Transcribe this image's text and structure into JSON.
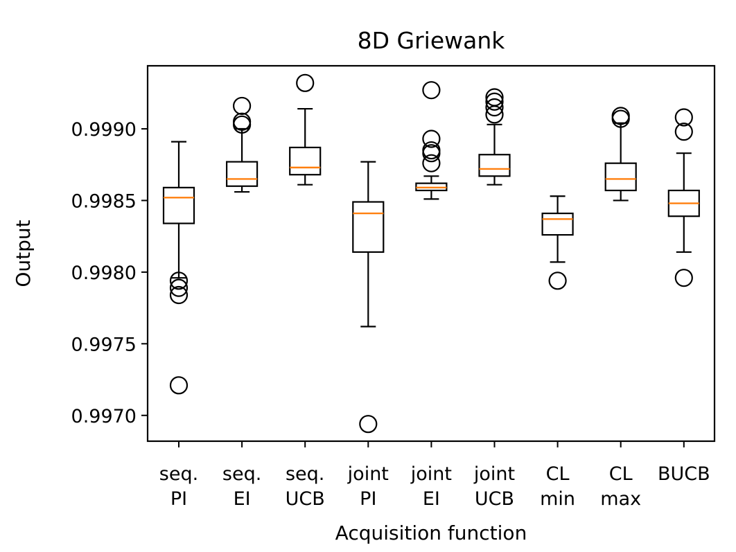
{
  "chart_data": {
    "type": "boxplot",
    "title": "8D Griewank",
    "xlabel": "Acquisition function",
    "ylabel": "Output",
    "ylim": [
      0.99682,
      0.99944
    ],
    "yticks": [
      {
        "value": 0.997,
        "label": "0.9970"
      },
      {
        "value": 0.9975,
        "label": "0.9975"
      },
      {
        "value": 0.998,
        "label": "0.9980"
      },
      {
        "value": 0.9985,
        "label": "0.9985"
      },
      {
        "value": 0.999,
        "label": "0.9990"
      }
    ],
    "categories": [
      {
        "line1": "seq.",
        "line2": "PI"
      },
      {
        "line1": "seq.",
        "line2": "EI"
      },
      {
        "line1": "seq.",
        "line2": "UCB"
      },
      {
        "line1": "joint",
        "line2": "PI"
      },
      {
        "line1": "joint",
        "line2": "EI"
      },
      {
        "line1": "joint",
        "line2": "UCB"
      },
      {
        "line1": "CL",
        "line2": "min"
      },
      {
        "line1": "CL",
        "line2": "max"
      },
      {
        "line1": "BUCB",
        "line2": ""
      }
    ],
    "boxes": [
      {
        "whislo": 0.99796,
        "q1": 0.99834,
        "med": 0.99852,
        "q3": 0.99859,
        "whishi": 0.99891,
        "fliers": [
          0.99794,
          0.99789,
          0.99784,
          0.99721
        ]
      },
      {
        "whislo": 0.99856,
        "q1": 0.9986,
        "med": 0.99865,
        "q3": 0.99877,
        "whishi": 0.999,
        "fliers": [
          0.99903,
          0.99905,
          0.99916
        ]
      },
      {
        "whislo": 0.99861,
        "q1": 0.99868,
        "med": 0.99873,
        "q3": 0.99887,
        "whishi": 0.99914,
        "fliers": [
          0.99932
        ]
      },
      {
        "whislo": 0.99762,
        "q1": 0.99814,
        "med": 0.99841,
        "q3": 0.99849,
        "whishi": 0.99877,
        "fliers": [
          0.99694
        ]
      },
      {
        "whislo": 0.99851,
        "q1": 0.99857,
        "med": 0.99859,
        "q3": 0.99862,
        "whishi": 0.99867,
        "fliers": [
          0.99876,
          0.99883,
          0.99885,
          0.99893,
          0.99927
        ]
      },
      {
        "whislo": 0.99861,
        "q1": 0.99867,
        "med": 0.99872,
        "q3": 0.99882,
        "whishi": 0.99903,
        "fliers": [
          0.9991,
          0.99915,
          0.99919,
          0.99922
        ]
      },
      {
        "whislo": 0.99807,
        "q1": 0.99826,
        "med": 0.99837,
        "q3": 0.99841,
        "whishi": 0.99853,
        "fliers": [
          0.99794
        ]
      },
      {
        "whislo": 0.9985,
        "q1": 0.99857,
        "med": 0.99865,
        "q3": 0.99876,
        "whishi": 0.99904,
        "fliers": [
          0.99907,
          0.99909
        ]
      },
      {
        "whislo": 0.99814,
        "q1": 0.99839,
        "med": 0.99848,
        "q3": 0.99857,
        "whishi": 0.99883,
        "fliers": [
          0.99796,
          0.99898,
          0.99908
        ]
      }
    ],
    "colors": {
      "box": "#000000",
      "median": "#ff7f0e",
      "axes": "#000000",
      "background": "#ffffff"
    }
  }
}
